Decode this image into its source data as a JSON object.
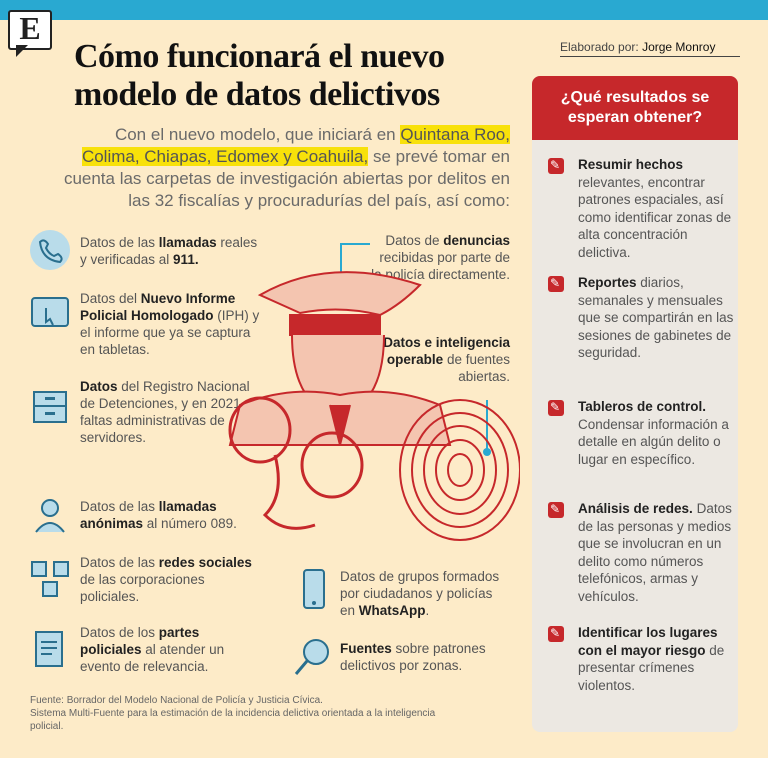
{
  "header": {
    "logo_letter": "E",
    "title_line1": "Cómo funcionará el nuevo",
    "title_line2": "modelo de datos delictivos",
    "byline_prefix": "Elaborado por:",
    "byline_author": "Jorge Monroy"
  },
  "intro": {
    "part1": "Con el nuevo modelo, que iniciará en ",
    "highlight1": "Quintana Roo,",
    "highlight2": "Colima, Chiapas, Edomex y Coahuila,",
    "part2": " se prevé tomar en cuenta las carpetas de investigación abiertas por delitos en las 32 fiscalías y procuradurías del país, así como:"
  },
  "items": {
    "i1": {
      "a": "Datos de las ",
      "b": "llamadas",
      "c": " reales y verificadas al ",
      "d": "911."
    },
    "i2": {
      "a": "Datos del ",
      "b": "Nuevo Informe Policial Homologado",
      "c": " (IPH) y el informe que ya se captura en tabletas."
    },
    "i3": {
      "b": "Datos",
      "c": " del Registro Nacional de Detenciones, y en 2021, faltas administrativas de servidores."
    },
    "i4": {
      "a": "Datos de las ",
      "b": "llamadas anónimas",
      "c": " al número 089."
    },
    "i5": {
      "a": "Datos de las ",
      "b": "redes sociales",
      "c": " de las corporaciones policiales."
    },
    "i6": {
      "a": "Datos de los ",
      "b": "partes policiales",
      "c": " al atender un evento de relevancia."
    },
    "i7": {
      "a": "Datos de ",
      "b": "denuncias",
      "c": " recibidas por parte de la policía directamente."
    },
    "i8": {
      "b": "Datos e inteligencia operable",
      "c": " de fuentes abiertas."
    },
    "i9": {
      "a": "Datos de grupos formados por ciudadanos y policías en ",
      "b": "WhatsApp",
      "c": "."
    },
    "i10": {
      "b": "Fuentes",
      "c": " sobre patrones delictivos por zonas."
    }
  },
  "source": {
    "line1": "Fuente: Borrador del Modelo Nacional de Policía y Justicia Cívica.",
    "line2": "Sistema Multi-Fuente para la estimación de la incidencia delictiva orientada a la inteligencia policial."
  },
  "panel": {
    "heading": "¿Qué resultados se esperan obtener?",
    "r1": {
      "b": "Resumir hechos",
      "c": " relevantes, encontrar patrones espaciales, así como identificar zonas de alta concentración delictiva."
    },
    "r2": {
      "b": "Reportes",
      "c": " diarios, semanales y mensuales que se compartirán en las sesiones de gabinetes de seguridad."
    },
    "r3": {
      "b": "Tableros de control.",
      "c": " Condensar información a detalle en algún delito o lugar en específico."
    },
    "r4": {
      "b": "Análisis de redes.",
      "c": " Datos de las personas y medios que se involucran en un delito como números telefónicos, armas y vehículos."
    },
    "r5": {
      "b": "Identificar los lugares con el mayor riesgo",
      "c": " de presentar crímenes violentos."
    }
  },
  "colors": {
    "accent_blue": "#29a9d1",
    "accent_red": "#c6282b",
    "highlight": "#f8e10a",
    "background": "#fdebc8"
  }
}
